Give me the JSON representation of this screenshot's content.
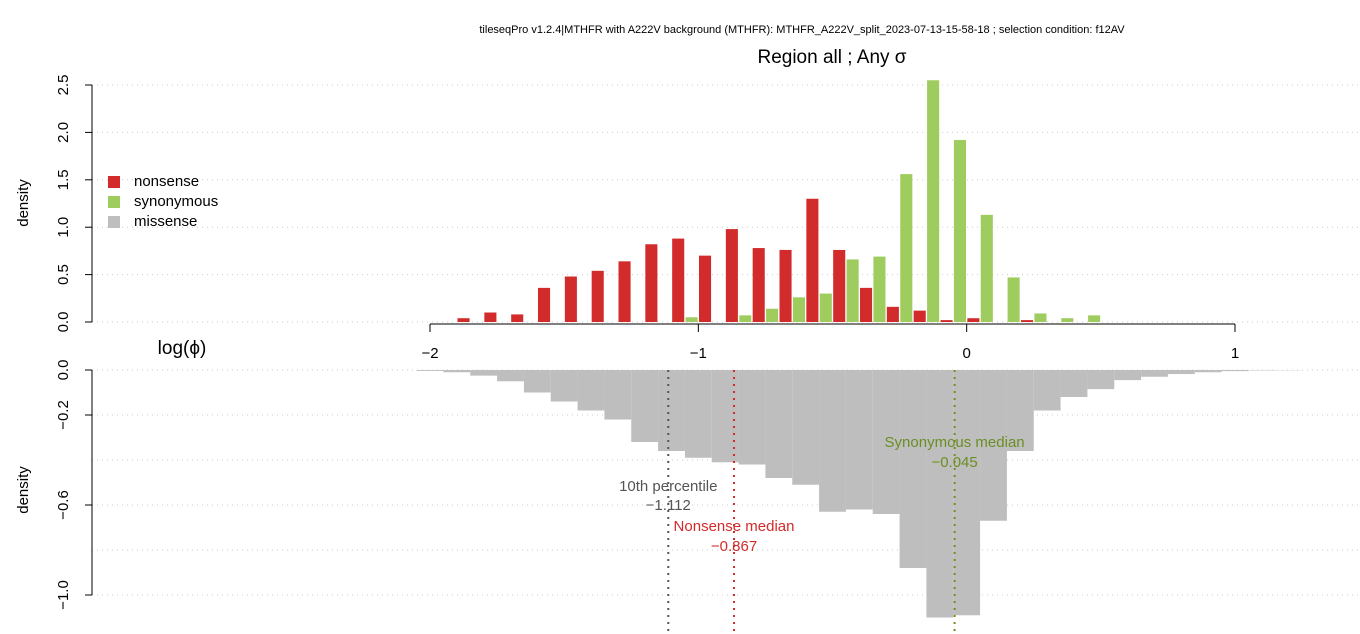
{
  "chart_data": [
    {
      "type": "histogram",
      "title": "tileseqPro v1.2.4|MTHFR with A222V background (MTHFR): MTHFR_A222V_split_2023-07-13-15-58-18 ; selection condition: f12AV",
      "subtitle": "Region all ; Any σ",
      "xlabel": "log(ϕ)",
      "ylabel": "density",
      "bins": [
        -1.9,
        -1.8,
        -1.7,
        -1.6,
        -1.5,
        -1.4,
        -1.3,
        -1.2,
        -1.1,
        -1.0,
        -0.9,
        -0.8,
        -0.7,
        -0.6,
        -0.5,
        -0.4,
        -0.3,
        -0.2,
        -0.1,
        0.0,
        0.1,
        0.2,
        0.3,
        0.4,
        0.5
      ],
      "series": [
        {
          "name": "nonsense",
          "color": "#d22b2b",
          "values": [
            0.04,
            0.1,
            0.08,
            0.36,
            0.48,
            0.54,
            0.64,
            0.82,
            0.88,
            0.7,
            0.98,
            0.78,
            0.76,
            1.3,
            0.76,
            0.36,
            0.16,
            0.12,
            0.02,
            0.04,
            0,
            0.02,
            0,
            0
          ]
        },
        {
          "name": "synonymous",
          "color": "#9fcc5f",
          "values": [
            0,
            0,
            0,
            0,
            0,
            0,
            0,
            0,
            0.05,
            0,
            0.07,
            0.14,
            0.26,
            0.3,
            0.66,
            0.69,
            1.56,
            2.55,
            1.92,
            1.13,
            0.47,
            0.09,
            0.04,
            0.07
          ]
        }
      ],
      "xlim": [
        -2,
        1
      ],
      "xticks": [
        {
          "value": -2,
          "label": "−2"
        },
        {
          "value": -1,
          "label": "−1"
        },
        0,
        1
      ],
      "ylim": [
        0,
        2.5
      ],
      "yticks": [
        {
          "value": 0,
          "label": "0.0"
        },
        0.5,
        {
          "value": 1,
          "label": "1.0"
        },
        1.5,
        {
          "value": 2,
          "label": "2.0"
        },
        2.5
      ],
      "grid": true,
      "legend": "top-left"
    },
    {
      "type": "histogram",
      "ylabel": "density",
      "bins": [
        -2.05,
        -1.95,
        -1.85,
        -1.75,
        -1.65,
        -1.55,
        -1.45,
        -1.35,
        -1.25,
        -1.15,
        -1.05,
        -0.95,
        -0.85,
        -0.75,
        -0.65,
        -0.55,
        -0.45,
        -0.35,
        -0.25,
        -0.15,
        -0.05,
        0.05,
        0.15,
        0.25,
        0.35,
        0.45,
        0.55,
        0.65,
        0.75,
        0.85,
        0.95,
        1.05,
        1.15,
        1.25
      ],
      "series": [
        {
          "name": "missense",
          "color": "#bebebe",
          "values": [
            -0.004,
            -0.01,
            -0.025,
            -0.05,
            -0.1,
            -0.14,
            -0.18,
            -0.22,
            -0.32,
            -0.36,
            -0.39,
            -0.41,
            -0.42,
            -0.48,
            -0.51,
            -0.63,
            -0.62,
            -0.64,
            -0.88,
            -1.1,
            -1.09,
            -0.67,
            -0.36,
            -0.18,
            -0.12,
            -0.085,
            -0.045,
            -0.03,
            -0.018,
            -0.01,
            -0.005,
            -0.002,
            -0.001
          ]
        }
      ],
      "ylim": [
        -1.15,
        0
      ],
      "yticks": [
        {
          "value": 0,
          "label": "0.0"
        },
        {
          "value": -0.2,
          "label": "−0.2"
        },
        {
          "value": -0.6,
          "label": "−0.6"
        },
        {
          "value": -1.0,
          "label": "−1.0"
        }
      ],
      "ygrid": [
        0,
        -0.2,
        -0.4,
        -0.6,
        -0.8,
        -1.0
      ],
      "markers": {
        "names": [
          "10th percentile",
          "Nonsense median",
          "Synonymous median"
        ],
        "values": [
          -1.112,
          -0.867,
          -0.045
        ],
        "value_labels": [
          "−1.112",
          "−0.867",
          "−0.045"
        ],
        "colors": [
          "#555555",
          "#d22b2b",
          "#6b8e23"
        ]
      }
    }
  ]
}
